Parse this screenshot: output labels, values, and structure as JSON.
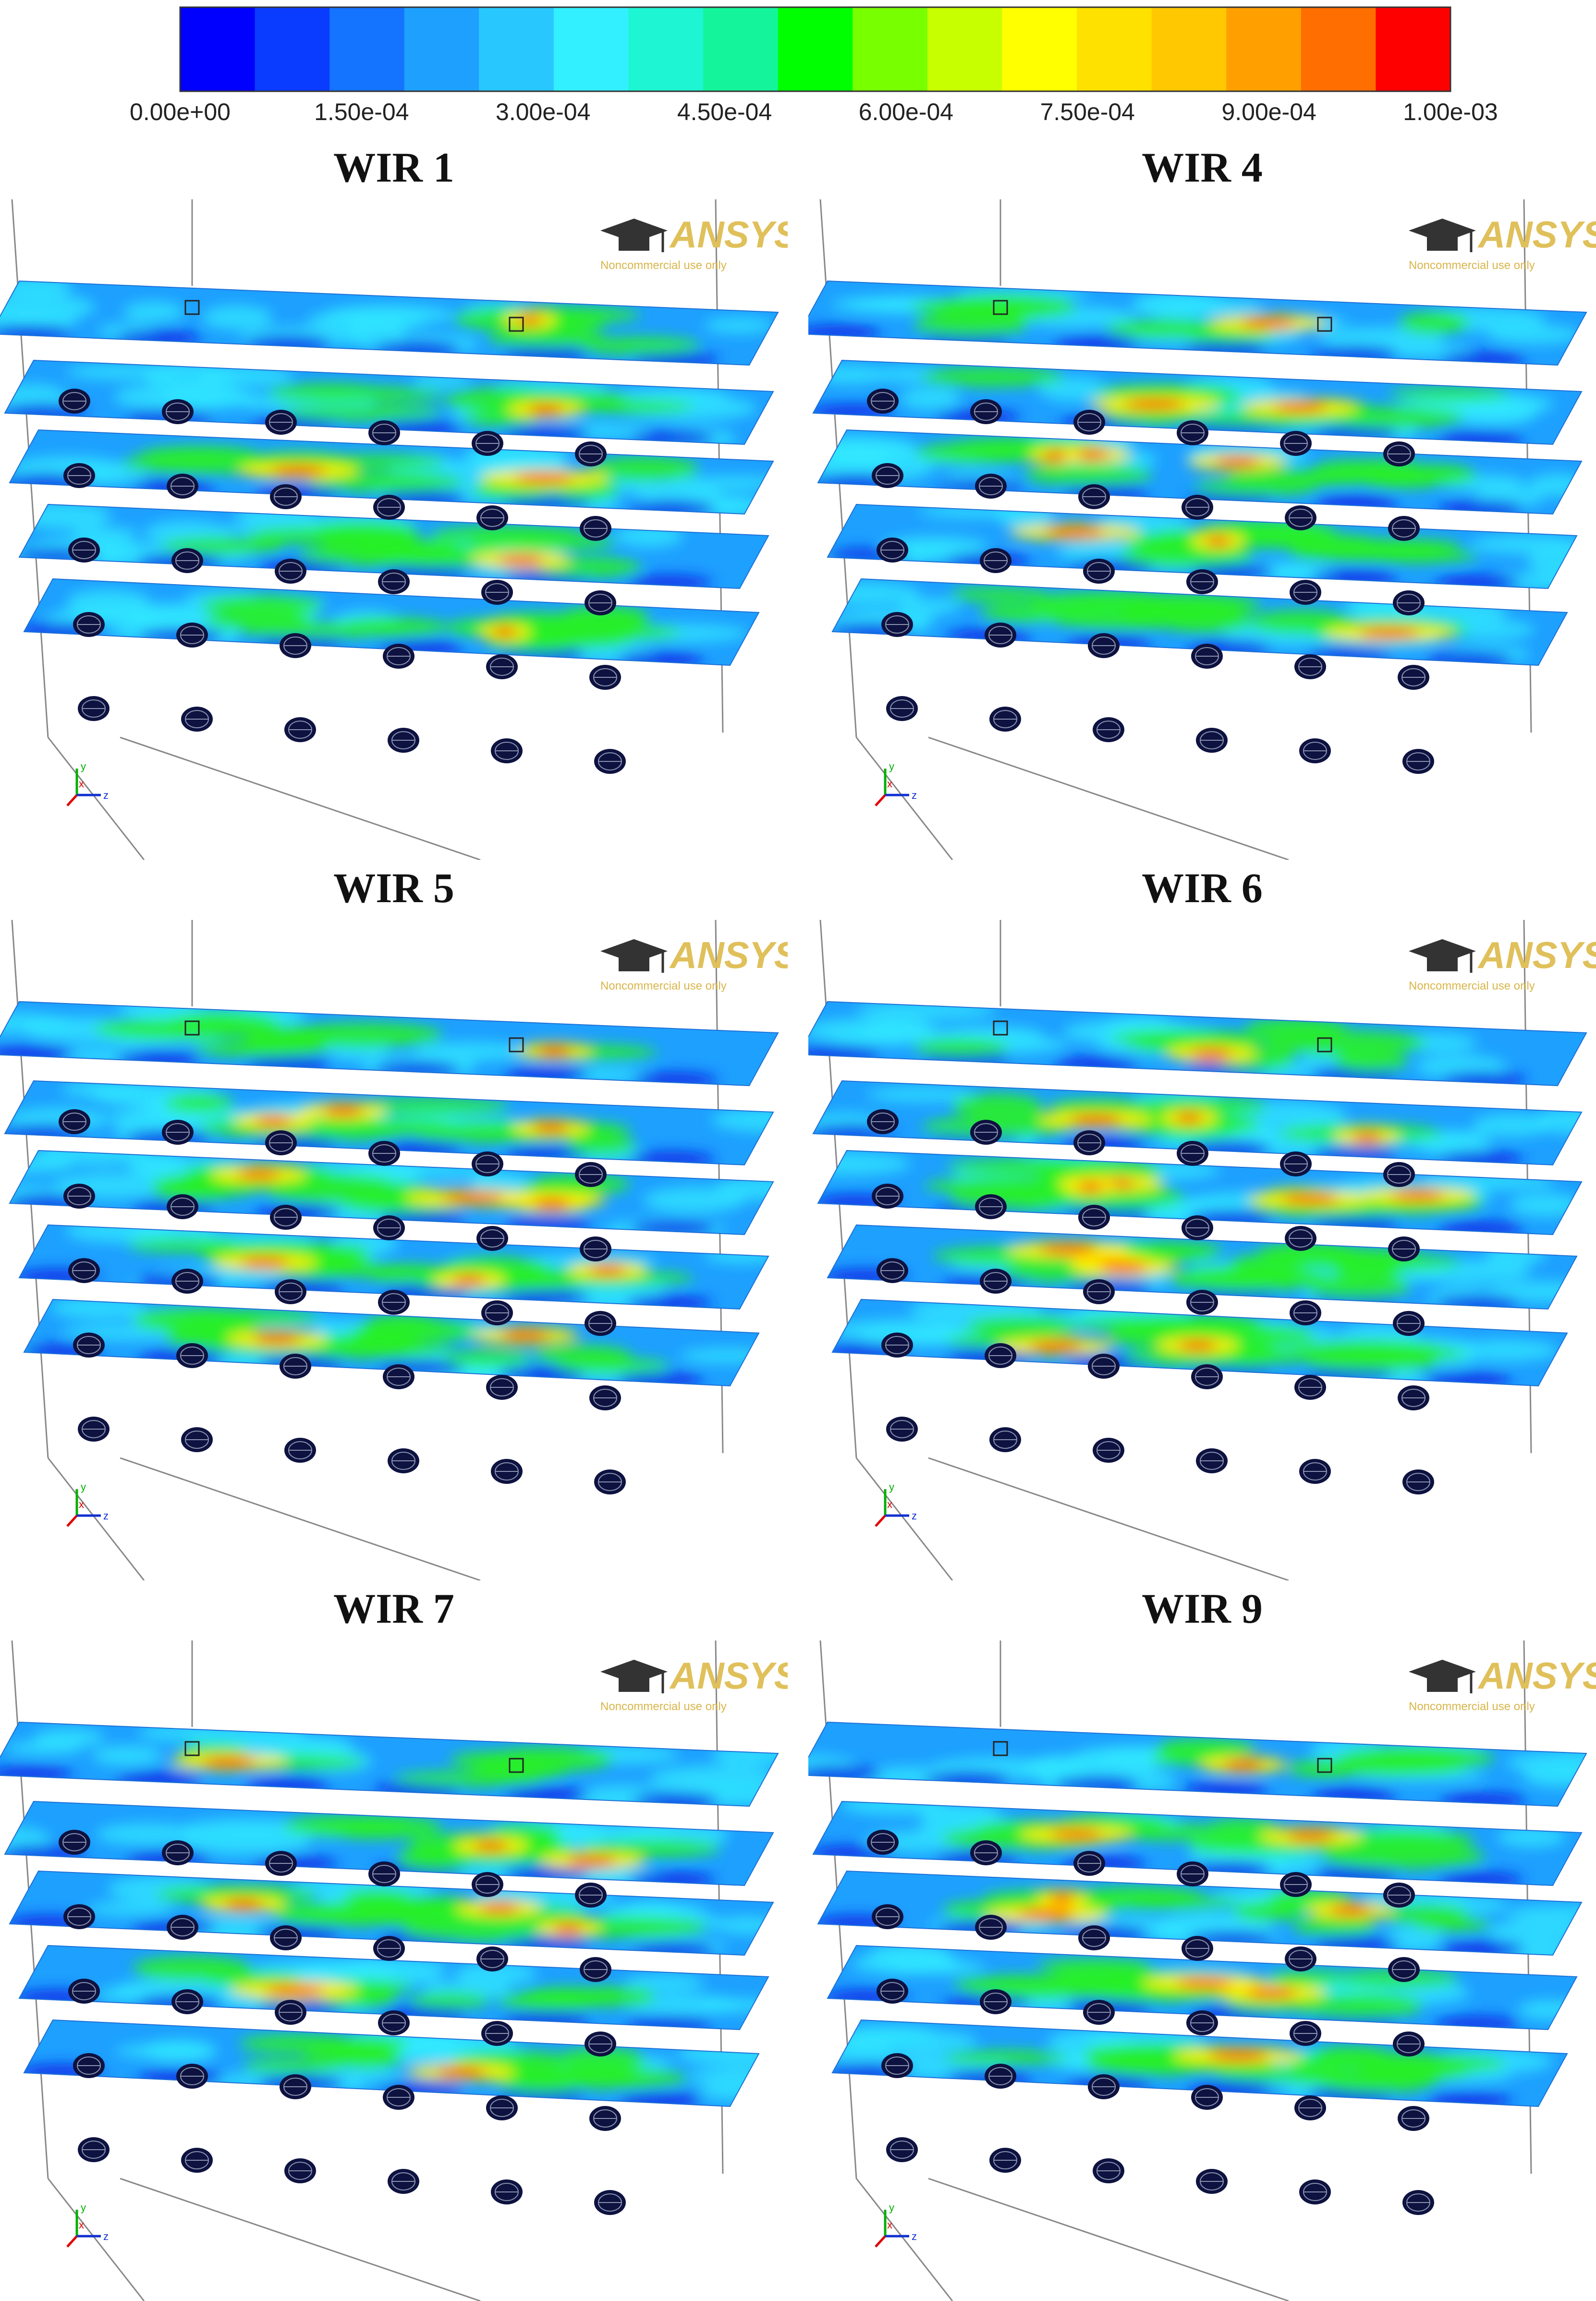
{
  "colorbar": {
    "colors": [
      "#0000ff",
      "#0a3cff",
      "#1473ff",
      "#1ea0ff",
      "#28c8ff",
      "#32f0ff",
      "#1ef5d2",
      "#14f59b",
      "#00ff00",
      "#78ff00",
      "#c8ff00",
      "#ffff00",
      "#ffe100",
      "#ffc800",
      "#ffa000",
      "#ff6e00",
      "#ff0000"
    ],
    "tick_labels": [
      "0.00e+00",
      "1.50e-04",
      "3.00e-04",
      "4.50e-04",
      "6.00e-04",
      "7.50e-04",
      "9.00e-04",
      "1.00e-03"
    ]
  },
  "watermark": {
    "brand": "ANSYS",
    "subtitle": "Noncommercial use only"
  },
  "axes_triad": {
    "x": "x",
    "y": "y",
    "z": "z"
  },
  "panels": [
    {
      "title": "WIR 1",
      "hot_level": 2
    },
    {
      "title": "WIR 4",
      "hot_level": 3
    },
    {
      "title": "WIR 5",
      "hot_level": 4
    },
    {
      "title": "WIR 6",
      "hot_level": 4
    },
    {
      "title": "WIR 7",
      "hot_level": 3
    },
    {
      "title": "WIR 9",
      "hot_level": 3
    }
  ]
}
